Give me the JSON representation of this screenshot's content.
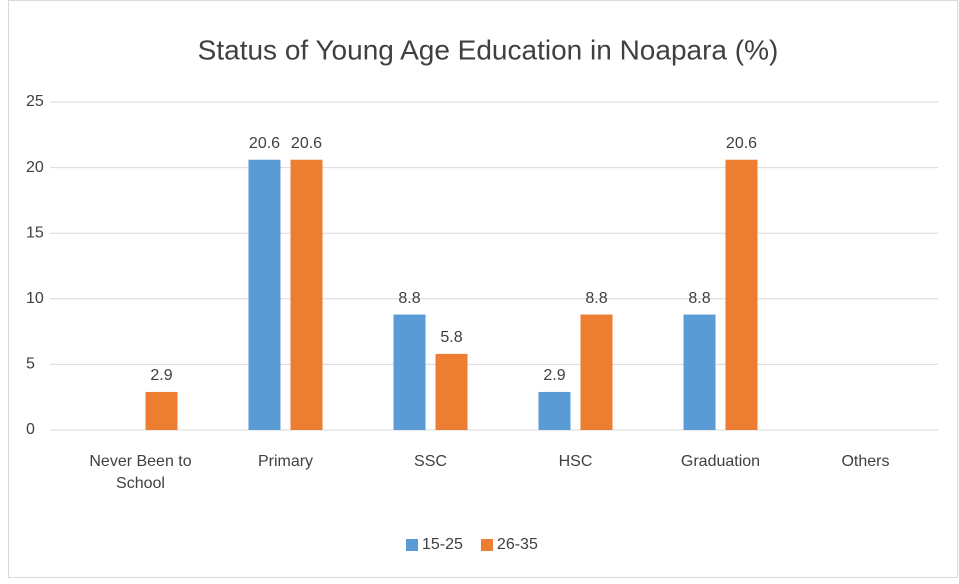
{
  "chart_data": {
    "type": "bar",
    "title": "Status of Young Age Education in Noapara (%)",
    "categories": [
      [
        "Never Been to",
        "School"
      ],
      "Primary",
      "SSC",
      "HSC",
      "Graduation",
      "Others"
    ],
    "series": [
      {
        "name": "15-25",
        "color": "#5b9bd5",
        "values": [
          null,
          20.6,
          8.8,
          2.9,
          8.8,
          null
        ]
      },
      {
        "name": "26-35",
        "color": "#ed7d31",
        "values": [
          2.9,
          20.6,
          5.8,
          8.8,
          20.6,
          null
        ]
      }
    ],
    "ylim": [
      0,
      25
    ],
    "yticks": [
      0,
      5,
      10,
      15,
      20,
      25
    ],
    "grid": true,
    "legend": "bottom"
  }
}
